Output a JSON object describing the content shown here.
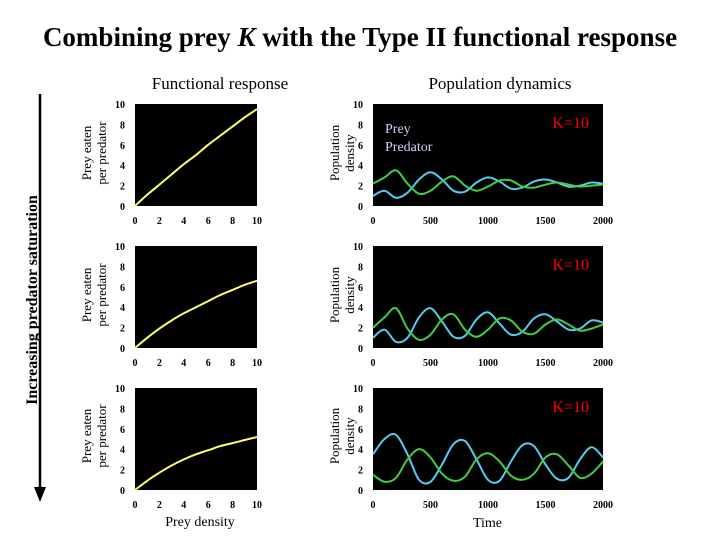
{
  "title_prefix": "Combining prey ",
  "title_italic": "K",
  "title_suffix": " with the Type II functional response",
  "left_heading": "Functional response",
  "right_heading": "Population dynamics",
  "side_label": "Increasing predator saturation",
  "left_ylabel_line1": "Prey eaten",
  "left_ylabel_line2": "per predator",
  "right_ylabel_line1": "Population",
  "right_ylabel_line2": "density",
  "left_xlabel": "Prey density",
  "right_xlabel": "Time",
  "colors": {
    "plot_bg": "#000000",
    "response": "#ffff66",
    "prey": "#55ccee",
    "predator": "#44cc44",
    "k_label": "#ff0000",
    "legend_text": "#d0d0ff"
  },
  "chart_data": [
    {
      "type": "line",
      "panel": "functional-response-1",
      "xlabel": "Prey density",
      "ylabel": "Prey eaten per predator",
      "xlim": [
        0,
        10
      ],
      "ylim": [
        0,
        10
      ],
      "xticks": [
        0,
        2,
        4,
        6,
        8,
        10
      ],
      "yticks": [
        0,
        2,
        4,
        6,
        8,
        10
      ],
      "series": [
        {
          "name": "Functional response",
          "x": [
            0,
            1,
            2,
            3,
            4,
            5,
            6,
            7,
            8,
            9,
            10
          ],
          "values": [
            0.0,
            1.1,
            2.1,
            3.1,
            4.1,
            5.0,
            6.0,
            6.9,
            7.8,
            8.7,
            9.5
          ]
        }
      ]
    },
    {
      "type": "line",
      "panel": "functional-response-2",
      "xlabel": "Prey density",
      "ylabel": "Prey eaten per predator",
      "xlim": [
        0,
        10
      ],
      "ylim": [
        0,
        10
      ],
      "xticks": [
        0,
        2,
        4,
        6,
        8,
        10
      ],
      "yticks": [
        0,
        2,
        4,
        6,
        8,
        10
      ],
      "series": [
        {
          "name": "Functional response",
          "x": [
            0,
            1,
            2,
            3,
            4,
            5,
            6,
            7,
            8,
            9,
            10
          ],
          "values": [
            0.0,
            1.0,
            1.9,
            2.7,
            3.4,
            4.0,
            4.6,
            5.2,
            5.7,
            6.2,
            6.6
          ]
        }
      ]
    },
    {
      "type": "line",
      "panel": "functional-response-3",
      "xlabel": "Prey density",
      "ylabel": "Prey eaten per predator",
      "xlim": [
        0,
        10
      ],
      "ylim": [
        0,
        10
      ],
      "xticks": [
        0,
        2,
        4,
        6,
        8,
        10
      ],
      "yticks": [
        0,
        2,
        4,
        6,
        8,
        10
      ],
      "series": [
        {
          "name": "Functional response",
          "x": [
            0,
            1,
            2,
            3,
            4,
            5,
            6,
            7,
            8,
            9,
            10
          ],
          "values": [
            0.0,
            0.9,
            1.7,
            2.4,
            3.0,
            3.5,
            3.9,
            4.3,
            4.6,
            4.9,
            5.2
          ]
        }
      ]
    },
    {
      "type": "line",
      "panel": "population-dynamics-1",
      "xlabel": "Time",
      "ylabel": "Population density",
      "xlim": [
        0,
        2000
      ],
      "ylim": [
        0,
        10
      ],
      "xticks": [
        0,
        500,
        1000,
        1500,
        2000
      ],
      "yticks": [
        0,
        2,
        4,
        6,
        8,
        10
      ],
      "annotation": "K=10",
      "legend": [
        "Prey",
        "Predator"
      ],
      "series": [
        {
          "name": "Prey",
          "x": [
            0,
            100,
            200,
            300,
            400,
            500,
            600,
            700,
            800,
            900,
            1000,
            1100,
            1200,
            1300,
            1400,
            1500,
            1600,
            1700,
            1800,
            1900,
            2000
          ],
          "values": [
            1.0,
            1.5,
            0.8,
            1.3,
            2.6,
            3.3,
            2.6,
            1.5,
            1.4,
            2.3,
            2.8,
            2.4,
            1.7,
            1.8,
            2.4,
            2.6,
            2.3,
            1.9,
            2.0,
            2.3,
            2.2
          ]
        },
        {
          "name": "Predator",
          "x": [
            0,
            100,
            200,
            300,
            400,
            500,
            600,
            700,
            800,
            900,
            1000,
            1100,
            1200,
            1300,
            1400,
            1500,
            1600,
            1700,
            1800,
            1900,
            2000
          ],
          "values": [
            2.2,
            2.8,
            3.5,
            2.2,
            1.2,
            1.5,
            2.4,
            2.9,
            2.0,
            1.5,
            1.9,
            2.5,
            2.5,
            1.9,
            1.8,
            2.1,
            2.3,
            2.1,
            1.9,
            2.0,
            2.1
          ]
        }
      ]
    },
    {
      "type": "line",
      "panel": "population-dynamics-2",
      "xlabel": "Time",
      "ylabel": "Population density",
      "xlim": [
        0,
        2000
      ],
      "ylim": [
        0,
        10
      ],
      "xticks": [
        0,
        500,
        1000,
        1500,
        2000
      ],
      "yticks": [
        0,
        2,
        4,
        6,
        8,
        10
      ],
      "annotation": "K=10",
      "series": [
        {
          "name": "Prey",
          "x": [
            0,
            100,
            200,
            300,
            400,
            500,
            600,
            700,
            800,
            900,
            1000,
            1100,
            1200,
            1300,
            1400,
            1500,
            1600,
            1700,
            1800,
            1900,
            2000
          ],
          "values": [
            1.0,
            1.8,
            0.6,
            1.0,
            3.0,
            3.9,
            2.6,
            1.1,
            1.2,
            2.8,
            3.5,
            2.4,
            1.3,
            1.6,
            2.9,
            3.3,
            2.6,
            1.8,
            1.9,
            2.7,
            2.5
          ]
        },
        {
          "name": "Predator",
          "x": [
            0,
            100,
            200,
            300,
            400,
            500,
            600,
            700,
            800,
            900,
            1000,
            1100,
            1200,
            1300,
            1400,
            1500,
            1600,
            1700,
            1800,
            1900,
            2000
          ],
          "values": [
            2.0,
            3.0,
            3.9,
            1.9,
            0.8,
            1.3,
            2.8,
            3.3,
            1.8,
            1.1,
            1.8,
            2.9,
            2.7,
            1.6,
            1.4,
            2.3,
            2.8,
            2.3,
            1.7,
            1.9,
            2.3
          ]
        }
      ]
    },
    {
      "type": "line",
      "panel": "population-dynamics-3",
      "xlabel": "Time",
      "ylabel": "Population density",
      "xlim": [
        0,
        2000
      ],
      "ylim": [
        0,
        10
      ],
      "xticks": [
        0,
        500,
        1000,
        1500,
        2000
      ],
      "yticks": [
        0,
        2,
        4,
        6,
        8,
        10
      ],
      "annotation": "K=10",
      "series": [
        {
          "name": "Prey",
          "x": [
            0,
            100,
            200,
            300,
            400,
            500,
            600,
            700,
            800,
            900,
            1000,
            1100,
            1200,
            1300,
            1400,
            1500,
            1600,
            1700,
            1800,
            1900,
            2000
          ],
          "values": [
            3.5,
            5.0,
            5.4,
            3.5,
            1.0,
            0.8,
            2.5,
            4.5,
            4.8,
            3.0,
            1.0,
            0.9,
            2.8,
            4.4,
            4.3,
            2.5,
            1.1,
            1.2,
            3.0,
            4.2,
            3.2
          ]
        },
        {
          "name": "Predator",
          "x": [
            0,
            100,
            200,
            300,
            400,
            500,
            600,
            700,
            800,
            900,
            1000,
            1100,
            1200,
            1300,
            1400,
            1500,
            1600,
            1700,
            1800,
            1900,
            2000
          ],
          "values": [
            1.5,
            0.8,
            1.2,
            3.0,
            4.0,
            3.2,
            1.6,
            0.9,
            1.3,
            3.0,
            3.6,
            2.8,
            1.4,
            1.0,
            1.6,
            3.2,
            3.5,
            2.4,
            1.2,
            1.6,
            2.8
          ]
        }
      ]
    }
  ]
}
